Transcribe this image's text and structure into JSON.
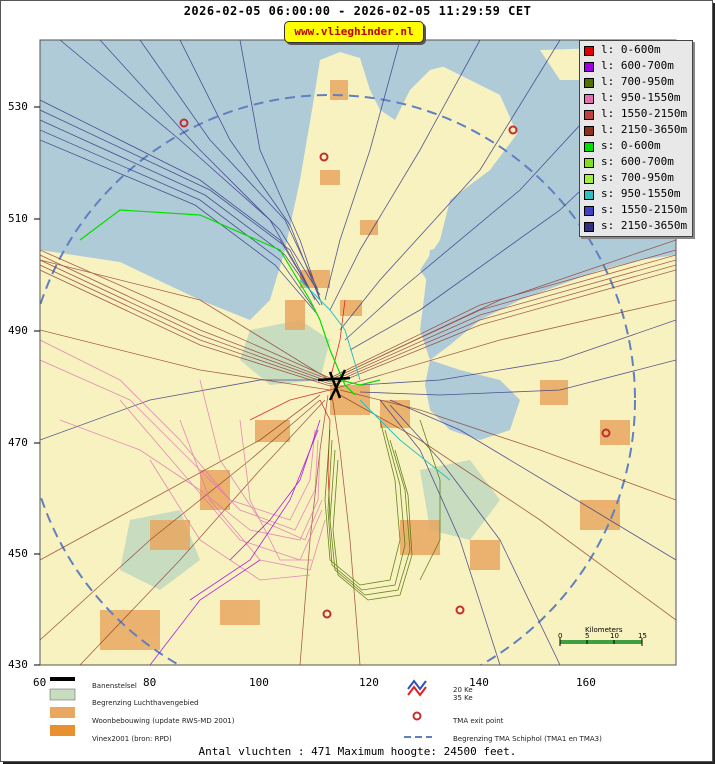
{
  "header": {
    "title": "2026-02-05 06:00:00 - 2026-02-05 11:29:59 CET",
    "site": "www.vlieghinder.nl"
  },
  "legend": {
    "items": [
      {
        "label": "l: 0-600m",
        "color": "#e00000"
      },
      {
        "label": "l: 600-700m",
        "color": "#a000e0"
      },
      {
        "label": "l: 700-950m",
        "color": "#507000"
      },
      {
        "label": "l: 950-1550m",
        "color": "#e070b0"
      },
      {
        "label": "l: 1550-2150m",
        "color": "#c04040"
      },
      {
        "label": "l: 2150-3650m",
        "color": "#8b2f1f"
      },
      {
        "label": "s: 0-600m",
        "color": "#00e000"
      },
      {
        "label": "s: 600-700m",
        "color": "#80e020"
      },
      {
        "label": "s: 700-950m",
        "color": "#a0f040"
      },
      {
        "label": "s: 950-1550m",
        "color": "#30c0c0"
      },
      {
        "label": "s: 1550-2150m",
        "color": "#4040c0"
      },
      {
        "label": "s: 2150-3650m",
        "color": "#303080"
      }
    ]
  },
  "axes": {
    "y_ticks": [
      "530",
      "510",
      "490",
      "470",
      "450",
      "430"
    ],
    "x_ticks": [
      "60",
      "80",
      "100",
      "120",
      "140",
      "160"
    ]
  },
  "scale_bar": {
    "label": "Kilometers",
    "ticks": [
      "0",
      "5",
      "10",
      "15"
    ]
  },
  "map_key": {
    "runway": "Banenstelsel",
    "airport_boundary": "Begrenzing Luchthavengebied",
    "housing": "Woonbebouwing (update RWS-MD 2001)",
    "vinex": "Vinex2001 (bron: RPD)",
    "ke20": "20 Ke",
    "ke35": "35 Ke",
    "tma_exit": "TMA exit point",
    "tma_boundary": "Begrenzing TMA Schiphol  (TMA1 en TMA3)"
  },
  "footer": "Antal vluchten : 471 Maximum hoogte: 24500 feet.",
  "colors": {
    "sea": "#b0cbd8",
    "land": "#f7f2c0",
    "urban": "#e8a860",
    "green": "#c8dcc0",
    "tma_exit": "#c03030",
    "tma_boundary": "#6080c0"
  }
}
